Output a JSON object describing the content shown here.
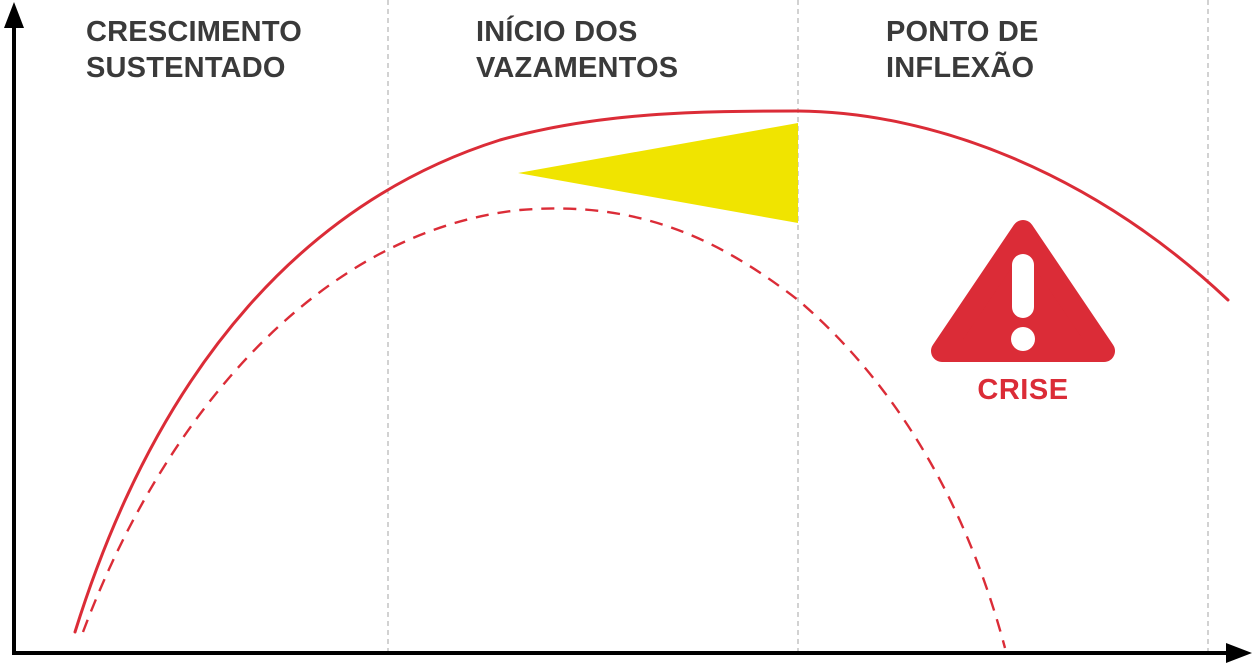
{
  "phases": [
    {
      "line1": "CRESCIMENTO",
      "line2": "SUSTENTADO"
    },
    {
      "line1": "INÍCIO DOS",
      "line2": "VAZAMENTOS"
    },
    {
      "line1": "PONTO DE",
      "line2": "INFLEXÃO"
    }
  ],
  "crisis": {
    "label": "CRISE",
    "icon": "warning-triangle-icon"
  },
  "colors": {
    "curve": "#db2c37",
    "gap_highlight": "#f0e400",
    "axes": "#000000",
    "phase_dividers": "#b5b5b5",
    "label_text": "#3a3a3a"
  }
}
